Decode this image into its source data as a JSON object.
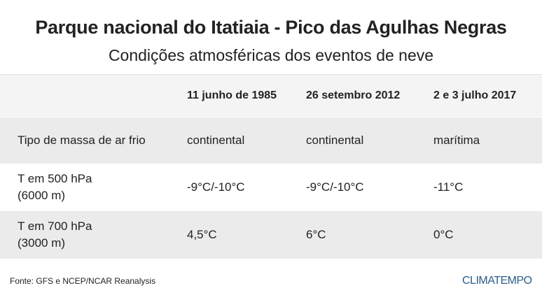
{
  "header": {
    "title": "Parque nacional do Itatiaia - Pico das Agulhas Negras",
    "subtitle": "Condições atmosféricas dos eventos de neve"
  },
  "table": {
    "columns": [
      "11 junho  de 1985",
      "26 setembro 2012",
      "2 e 3 julho 2017"
    ],
    "rows": [
      {
        "label": [
          "Tipo de massa de ar frio"
        ],
        "cells": [
          "continental",
          "continental",
          "marítima"
        ]
      },
      {
        "label": [
          "T em 500 hPa",
          "(6000 m)"
        ],
        "cells": [
          "-9°C/-10°C",
          "-9°C/-10°C",
          "-11°C"
        ]
      },
      {
        "label": [
          "T em 700 hPa",
          "(3000 m)"
        ],
        "cells": [
          "4,5°C",
          "6°C",
          "0°C"
        ]
      }
    ]
  },
  "footer": {
    "source": "Fonte: GFS e NCEP/NCAR Reanalysis",
    "logo": "CLIMATEMPO"
  }
}
